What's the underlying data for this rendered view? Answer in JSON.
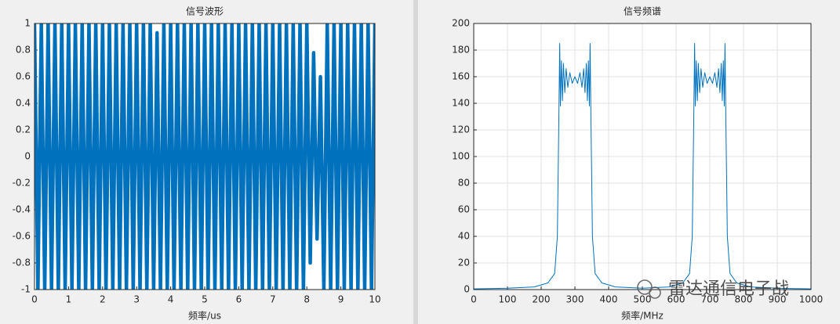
{
  "chart_data": [
    {
      "type": "line",
      "title": "信号波形",
      "x_label": "频率/us",
      "color": "#0072bd",
      "grid": false,
      "xlim": [
        0,
        10
      ],
      "xticks": [
        0,
        1,
        2,
        3,
        4,
        5,
        6,
        7,
        8,
        9,
        10
      ],
      "ylim": [
        -1,
        1
      ],
      "yticks": [
        -1,
        -0.8,
        -0.6,
        -0.4,
        -0.2,
        0,
        0.2,
        0.4,
        0.6,
        0.8,
        1
      ],
      "x": [
        0,
        0.1,
        0.2,
        0.3,
        0.4,
        0.5,
        0.6,
        0.7,
        0.8,
        0.9,
        1,
        1.1,
        1.2,
        1.3,
        1.4,
        1.5,
        1.6,
        1.7,
        1.8,
        1.9,
        2,
        2.1,
        2.2,
        2.3,
        2.4,
        2.5,
        2.6,
        2.7,
        2.8,
        2.9,
        3,
        3.1,
        3.2,
        3.3,
        3.4,
        3.5,
        3.6,
        3.7,
        3.8,
        3.9,
        4,
        4.1,
        4.2,
        4.3,
        4.4,
        4.5,
        4.6,
        4.7,
        4.8,
        4.9,
        5,
        5.1,
        5.2,
        5.3,
        5.4,
        5.5,
        5.6,
        5.7,
        5.8,
        5.9,
        6,
        6.1,
        6.2,
        6.3,
        6.4,
        6.5,
        6.6,
        6.7,
        6.8,
        6.9,
        7,
        7.1,
        7.2,
        7.3,
        7.4,
        7.5,
        7.6,
        7.7,
        7.8,
        7.9,
        8,
        8.1,
        8.2,
        8.3,
        8.4,
        8.5,
        8.6,
        8.7,
        8.8,
        8.9,
        9,
        9.1,
        9.2,
        9.3,
        9.4,
        9.5,
        9.6,
        9.7,
        9.8,
        9.9,
        10
      ],
      "values": [
        1,
        -1,
        1,
        -1,
        1,
        -1,
        1,
        -1,
        1,
        -1,
        1,
        -1,
        1,
        -1,
        1,
        -1,
        1,
        -1,
        1,
        -1,
        1,
        -1,
        1,
        -1,
        1,
        -1,
        1,
        -1,
        1,
        -1,
        1,
        -1,
        1,
        -1,
        1,
        -1,
        0.93,
        -1,
        1,
        -1,
        1,
        -1,
        1,
        -1,
        1,
        -1,
        1,
        -1,
        1,
        -1,
        1,
        -1,
        1,
        -1,
        1,
        -1,
        1,
        -1,
        1,
        -1,
        1,
        -1,
        1,
        -1,
        1,
        -1,
        1,
        -1,
        1,
        -1,
        1,
        -1,
        1,
        -1,
        1,
        -1,
        1,
        -1,
        1,
        -1,
        1,
        -0.8,
        0.78,
        -0.62,
        0.6,
        -1,
        1,
        -1,
        1,
        -1,
        1,
        -1,
        1,
        -1,
        1,
        -1,
        1,
        -1,
        1,
        -1,
        1
      ]
    },
    {
      "type": "line",
      "title": "信号频谱",
      "x_label": "频率/MHz",
      "color": "#0072bd",
      "grid": true,
      "xlim": [
        0,
        1000
      ],
      "xticks": [
        0,
        100,
        200,
        300,
        400,
        500,
        600,
        700,
        800,
        900,
        1000
      ],
      "ylim": [
        0,
        200
      ],
      "yticks": [
        0,
        20,
        40,
        60,
        80,
        100,
        120,
        140,
        160,
        180,
        200
      ],
      "x": [
        0,
        100,
        180,
        220,
        240,
        248,
        252,
        255,
        257,
        260,
        263,
        266,
        270,
        274,
        279,
        285,
        292,
        300,
        308,
        315,
        321,
        326,
        330,
        334,
        337,
        340,
        343,
        345,
        348,
        352,
        360,
        380,
        420,
        500,
        580,
        620,
        640,
        648,
        652,
        655,
        657,
        660,
        663,
        666,
        670,
        674,
        679,
        685,
        692,
        700,
        708,
        715,
        721,
        726,
        730,
        734,
        737,
        740,
        743,
        745,
        748,
        752,
        760,
        780,
        820,
        900,
        1000
      ],
      "values": [
        0.5,
        1,
        2,
        5,
        12,
        40,
        120,
        185,
        138,
        172,
        142,
        170,
        148,
        166,
        152,
        163,
        155,
        160,
        155,
        163,
        152,
        166,
        148,
        170,
        142,
        172,
        138,
        185,
        120,
        40,
        12,
        5,
        2,
        1,
        2,
        5,
        12,
        40,
        120,
        185,
        138,
        172,
        142,
        170,
        148,
        166,
        152,
        163,
        155,
        160,
        155,
        163,
        152,
        166,
        148,
        170,
        142,
        172,
        138,
        185,
        120,
        40,
        12,
        5,
        2,
        1,
        0.5
      ]
    }
  ],
  "watermark": "雷达通信电子战"
}
